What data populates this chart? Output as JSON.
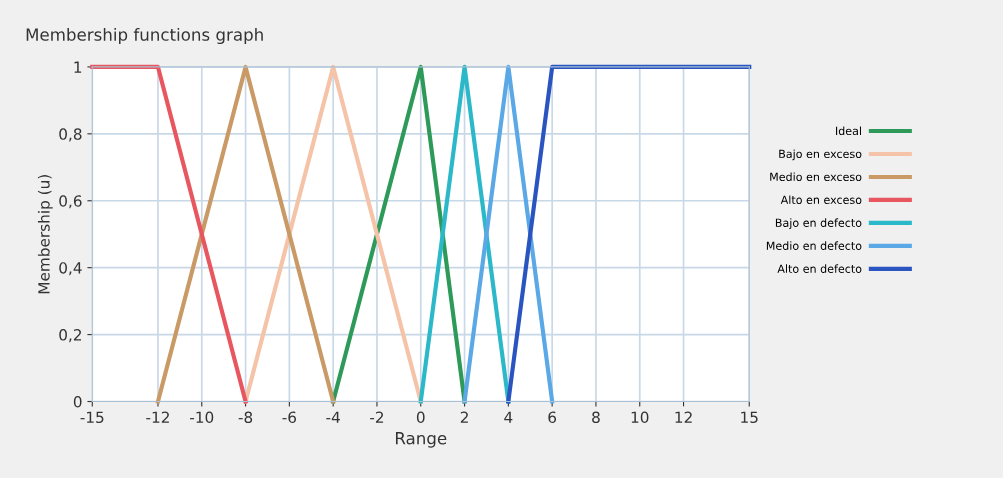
{
  "chart_data": {
    "type": "line",
    "title": "Membership functions graph",
    "xlabel": "Range",
    "ylabel": "Membership (u)",
    "series": [
      {
        "name": "Ideal",
        "color": "#2e9a5a",
        "x": [
          -4,
          0,
          2
        ],
        "values": [
          0,
          1,
          0
        ]
      },
      {
        "name": "Bajo en exceso",
        "color": "#f5c3a8",
        "x": [
          -8,
          -4,
          0
        ],
        "values": [
          0,
          1,
          0
        ]
      },
      {
        "name": "Medio en exceso",
        "color": "#c99a66",
        "x": [
          -12,
          -8,
          -4
        ],
        "values": [
          0,
          1,
          0
        ]
      },
      {
        "name": "Alto en exceso",
        "color": "#e8575f",
        "x": [
          -15,
          -12,
          -8
        ],
        "values": [
          1,
          1,
          0
        ]
      },
      {
        "name": "Bajo en defecto",
        "color": "#2bb8c8",
        "x": [
          0,
          2,
          4
        ],
        "values": [
          0,
          1,
          0
        ]
      },
      {
        "name": "Medio en defecto",
        "color": "#5aa8e6",
        "x": [
          2,
          4,
          6
        ],
        "values": [
          0,
          1,
          0
        ]
      },
      {
        "name": "Alto en defecto",
        "color": "#2a55c0",
        "x": [
          4,
          6,
          15
        ],
        "values": [
          0,
          1,
          1
        ]
      }
    ],
    "xlim": [
      -15,
      15
    ],
    "xticks": [
      -15,
      -12,
      -10,
      -8,
      -6,
      -4,
      -2,
      0,
      2,
      4,
      6,
      8,
      10,
      12,
      15
    ],
    "ylim": [
      0,
      1
    ],
    "yticks": [
      0,
      {
        "value": 0.2,
        "label": "0,2"
      },
      {
        "value": 0.4,
        "label": "0,4"
      },
      {
        "value": 0.6,
        "label": "0,6"
      },
      {
        "value": 0.8,
        "label": "0,8"
      },
      1
    ],
    "grid": true,
    "legend": "right",
    "line_style": "solid"
  }
}
